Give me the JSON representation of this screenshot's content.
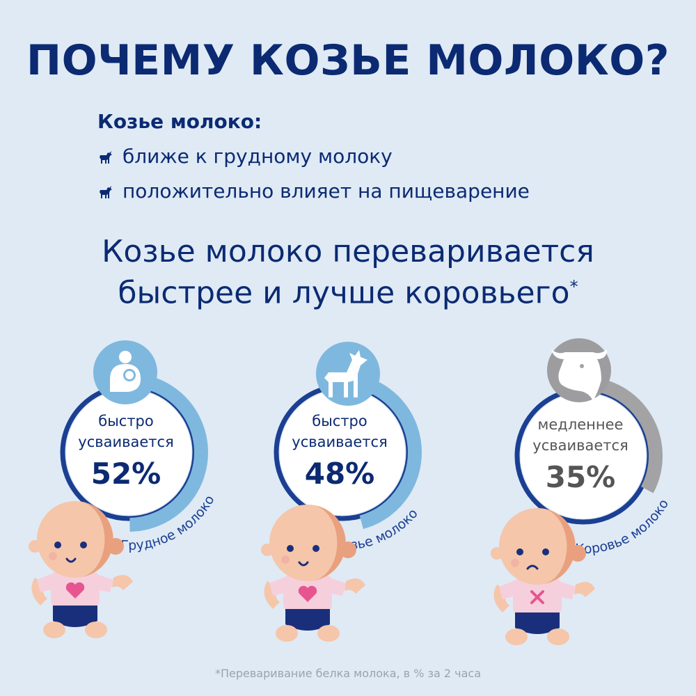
{
  "title": "ПОЧЕМУ КОЗЬЕ МОЛОКО?",
  "lead": "Козье молоко:",
  "bullets": [
    {
      "icon": "goat-icon",
      "text": "ближе к грудному молоку"
    },
    {
      "icon": "goat-icon",
      "text": "положительно влияет на пищеварение"
    }
  ],
  "subtitle": {
    "line1": "Козье молоко переваривается",
    "line2": "быстрее и лучше коровьего",
    "mark": "*"
  },
  "items": [
    {
      "icon": "breastfeeding-icon",
      "line1": "быстро",
      "line2": "усваивается",
      "percent_label": "52%",
      "percent": 52,
      "label": "Грудное молоко",
      "arc_color": "#7fb8de",
      "text_color": "#0b2a72",
      "baby_mood": "happy",
      "shirt_icon": "heart-icon"
    },
    {
      "icon": "goat-icon",
      "line1": "быстро",
      "line2": "усваивается",
      "percent_label": "48%",
      "percent": 48,
      "label": "Козье молоко",
      "arc_color": "#7fb8de",
      "text_color": "#0b2a72",
      "baby_mood": "happy",
      "shirt_icon": "heart-icon"
    },
    {
      "icon": "cow-icon",
      "line1": "медленнее",
      "line2": "усваивается",
      "percent_label": "35%",
      "percent": 35,
      "label": "Коровье молоко",
      "arc_color": "#a3a3a5",
      "text_color": "#555555",
      "baby_mood": "sad",
      "shirt_icon": "cross-icon"
    }
  ],
  "footer": "*Переваривание белка молока, в % за 2 часа",
  "colors": {
    "background": "#dfeaf5",
    "navy": "#0b2a72",
    "ring": "#1b3f92",
    "light_blue": "#7fb8de",
    "gray": "#a3a3a5"
  }
}
